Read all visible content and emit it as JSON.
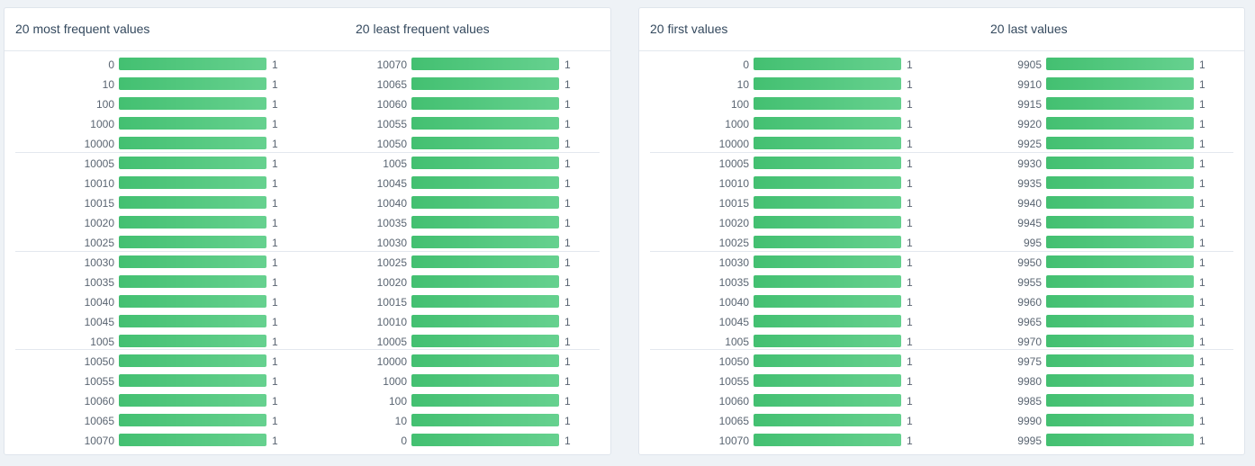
{
  "colors": {
    "bar_start": "#43c071",
    "bar_end": "#66d18f",
    "text": "#5a6572",
    "title": "#34495e"
  },
  "cards": [
    {
      "columns": [
        {
          "title": "20 most frequent values",
          "rows": [
            {
              "value": "0",
              "count": "1"
            },
            {
              "value": "10",
              "count": "1"
            },
            {
              "value": "100",
              "count": "1"
            },
            {
              "value": "1000",
              "count": "1"
            },
            {
              "value": "10000",
              "count": "1"
            },
            {
              "value": "10005",
              "count": "1"
            },
            {
              "value": "10010",
              "count": "1"
            },
            {
              "value": "10015",
              "count": "1"
            },
            {
              "value": "10020",
              "count": "1"
            },
            {
              "value": "10025",
              "count": "1"
            },
            {
              "value": "10030",
              "count": "1"
            },
            {
              "value": "10035",
              "count": "1"
            },
            {
              "value": "10040",
              "count": "1"
            },
            {
              "value": "10045",
              "count": "1"
            },
            {
              "value": "1005",
              "count": "1"
            },
            {
              "value": "10050",
              "count": "1"
            },
            {
              "value": "10055",
              "count": "1"
            },
            {
              "value": "10060",
              "count": "1"
            },
            {
              "value": "10065",
              "count": "1"
            },
            {
              "value": "10070",
              "count": "1"
            }
          ]
        },
        {
          "title": "20 least frequent values",
          "rows": [
            {
              "value": "10070",
              "count": "1"
            },
            {
              "value": "10065",
              "count": "1"
            },
            {
              "value": "10060",
              "count": "1"
            },
            {
              "value": "10055",
              "count": "1"
            },
            {
              "value": "10050",
              "count": "1"
            },
            {
              "value": "1005",
              "count": "1"
            },
            {
              "value": "10045",
              "count": "1"
            },
            {
              "value": "10040",
              "count": "1"
            },
            {
              "value": "10035",
              "count": "1"
            },
            {
              "value": "10030",
              "count": "1"
            },
            {
              "value": "10025",
              "count": "1"
            },
            {
              "value": "10020",
              "count": "1"
            },
            {
              "value": "10015",
              "count": "1"
            },
            {
              "value": "10010",
              "count": "1"
            },
            {
              "value": "10005",
              "count": "1"
            },
            {
              "value": "10000",
              "count": "1"
            },
            {
              "value": "1000",
              "count": "1"
            },
            {
              "value": "100",
              "count": "1"
            },
            {
              "value": "10",
              "count": "1"
            },
            {
              "value": "0",
              "count": "1"
            }
          ]
        }
      ]
    },
    {
      "columns": [
        {
          "title": "20 first values",
          "rows": [
            {
              "value": "0",
              "count": "1"
            },
            {
              "value": "10",
              "count": "1"
            },
            {
              "value": "100",
              "count": "1"
            },
            {
              "value": "1000",
              "count": "1"
            },
            {
              "value": "10000",
              "count": "1"
            },
            {
              "value": "10005",
              "count": "1"
            },
            {
              "value": "10010",
              "count": "1"
            },
            {
              "value": "10015",
              "count": "1"
            },
            {
              "value": "10020",
              "count": "1"
            },
            {
              "value": "10025",
              "count": "1"
            },
            {
              "value": "10030",
              "count": "1"
            },
            {
              "value": "10035",
              "count": "1"
            },
            {
              "value": "10040",
              "count": "1"
            },
            {
              "value": "10045",
              "count": "1"
            },
            {
              "value": "1005",
              "count": "1"
            },
            {
              "value": "10050",
              "count": "1"
            },
            {
              "value": "10055",
              "count": "1"
            },
            {
              "value": "10060",
              "count": "1"
            },
            {
              "value": "10065",
              "count": "1"
            },
            {
              "value": "10070",
              "count": "1"
            }
          ]
        },
        {
          "title": "20 last values",
          "rows": [
            {
              "value": "9905",
              "count": "1"
            },
            {
              "value": "9910",
              "count": "1"
            },
            {
              "value": "9915",
              "count": "1"
            },
            {
              "value": "9920",
              "count": "1"
            },
            {
              "value": "9925",
              "count": "1"
            },
            {
              "value": "9930",
              "count": "1"
            },
            {
              "value": "9935",
              "count": "1"
            },
            {
              "value": "9940",
              "count": "1"
            },
            {
              "value": "9945",
              "count": "1"
            },
            {
              "value": "995",
              "count": "1"
            },
            {
              "value": "9950",
              "count": "1"
            },
            {
              "value": "9955",
              "count": "1"
            },
            {
              "value": "9960",
              "count": "1"
            },
            {
              "value": "9965",
              "count": "1"
            },
            {
              "value": "9970",
              "count": "1"
            },
            {
              "value": "9975",
              "count": "1"
            },
            {
              "value": "9980",
              "count": "1"
            },
            {
              "value": "9985",
              "count": "1"
            },
            {
              "value": "9990",
              "count": "1"
            },
            {
              "value": "9995",
              "count": "1"
            }
          ]
        }
      ]
    }
  ]
}
